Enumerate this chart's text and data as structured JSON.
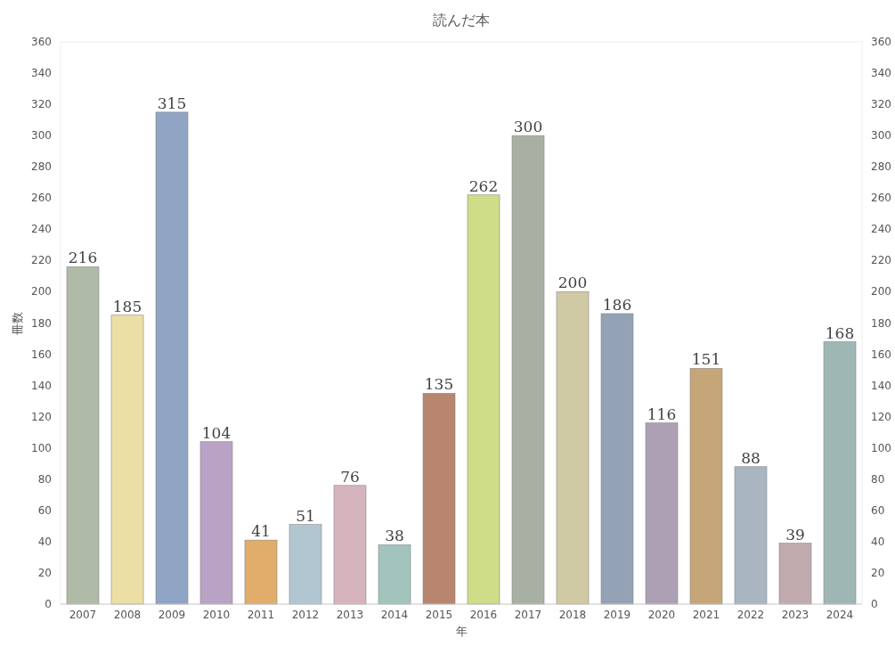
{
  "chart_data": {
    "type": "bar",
    "title": "読んだ本",
    "xlabel": "年",
    "ylabel": "冊数",
    "categories": [
      "2007",
      "2008",
      "2009",
      "2010",
      "2011",
      "2012",
      "2013",
      "2014",
      "2015",
      "2016",
      "2017",
      "2018",
      "2019",
      "2020",
      "2021",
      "2022",
      "2023",
      "2024"
    ],
    "values": [
      216,
      185,
      315,
      104,
      41,
      51,
      76,
      38,
      135,
      262,
      300,
      200,
      186,
      116,
      151,
      88,
      39,
      168
    ],
    "colors": [
      "#afbba6",
      "#ebdfa6",
      "#90a4c4",
      "#b9a2c4",
      "#e0ad6a",
      "#b2c6d2",
      "#d6b4bd",
      "#a2c4bd",
      "#b8856f",
      "#cfdc88",
      "#a8b0a4",
      "#cfc9a4",
      "#94a2b6",
      "#ada0b5",
      "#c5a678",
      "#a9b5c0",
      "#c1aaae",
      "#9fb7b4"
    ],
    "ylim": [
      0,
      360
    ],
    "yticks": [
      0,
      20,
      40,
      60,
      80,
      100,
      120,
      140,
      160,
      180,
      200,
      220,
      240,
      260,
      280,
      300,
      320,
      340,
      360
    ],
    "y2lim": [
      0,
      360
    ],
    "y2ticks": [
      0,
      20,
      40,
      60,
      80,
      100,
      120,
      140,
      160,
      180,
      200,
      220,
      240,
      260,
      280,
      300,
      320,
      340,
      360
    ],
    "data_labels": true
  }
}
